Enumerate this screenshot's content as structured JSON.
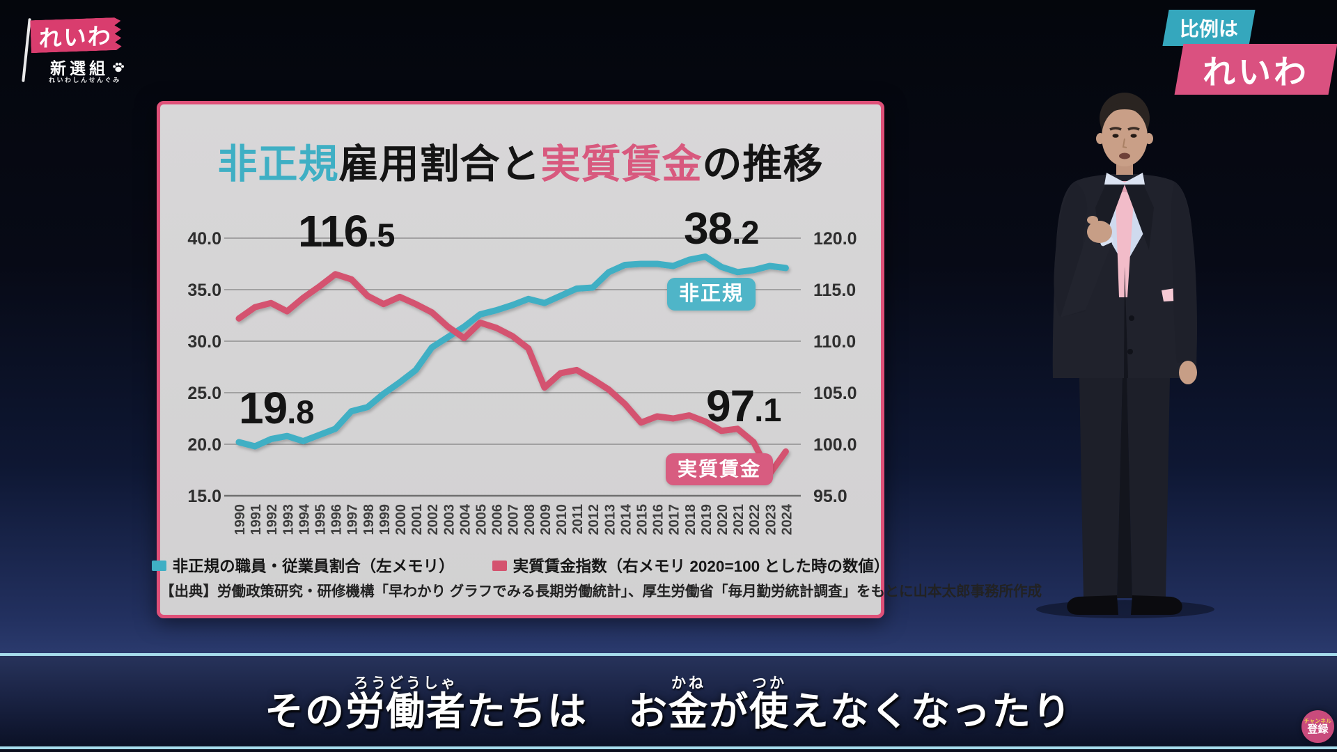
{
  "colors": {
    "brand_pink": "#d93d6e",
    "brand_teal": "#35a7bd",
    "panel_border_pink": "#df5078",
    "line_teal": "#3fafc4",
    "line_pink": "#d4536f"
  },
  "logo": {
    "flag_text": "れいわ",
    "sub_text": "新選組",
    "furigana": "れいわしんせんぐみ"
  },
  "corner_badge": {
    "top": "比例は",
    "bottom": "れいわ"
  },
  "chart_panel": {
    "title_parts": [
      {
        "text": "非正規",
        "color": "#3fafc4"
      },
      {
        "text": "雇用割合と",
        "color": "#141414"
      },
      {
        "text": "実質賃金",
        "color": "#d8597e"
      },
      {
        "text": "の推移",
        "color": "#141414"
      }
    ],
    "callouts": {
      "nonregular_start": {
        "int": "19",
        "dec": ".8"
      },
      "wage_peak": {
        "int": "116",
        "dec": ".5"
      },
      "nonregular_peak": {
        "int": "38",
        "dec": ".2"
      },
      "wage_end": {
        "int": "97",
        "dec": ".1"
      }
    },
    "series_badges": [
      {
        "text": "非正規",
        "color": "#4fb5c8"
      },
      {
        "text": "実質賃金",
        "color": "#d85c80"
      }
    ],
    "source": "【出典】労働政策研究・研修機構「早わかり グラフでみる長期労働統計」、厚生労働省「毎月勤労統計調査」をもとに山本太郎事務所作成"
  },
  "chart_data": {
    "type": "line",
    "title": "非正規雇用割合と実質賃金の推移",
    "x": [
      1990,
      1991,
      1992,
      1993,
      1994,
      1995,
      1996,
      1997,
      1998,
      1999,
      2000,
      2001,
      2002,
      2003,
      2004,
      2005,
      2006,
      2007,
      2008,
      2009,
      2010,
      2011,
      2012,
      2013,
      2014,
      2015,
      2016,
      2017,
      2018,
      2019,
      2020,
      2021,
      2022,
      2023,
      2024
    ],
    "series": [
      {
        "name": "非正規の職員・従業員割合（左メモリ）",
        "axis": "left",
        "color": "#3fafc4",
        "values": [
          20.2,
          19.8,
          20.5,
          20.8,
          20.3,
          20.9,
          21.5,
          23.2,
          23.6,
          24.9,
          26.0,
          27.2,
          29.4,
          30.4,
          31.4,
          32.6,
          33.0,
          33.5,
          34.1,
          33.7,
          34.4,
          35.1,
          35.2,
          36.7,
          37.4,
          37.5,
          37.5,
          37.3,
          37.9,
          38.2,
          37.2,
          36.7,
          36.9,
          37.3,
          37.1
        ]
      },
      {
        "name": "実質賃金指数（右メモリ 2020=100 とした時の数値）",
        "axis": "right",
        "color": "#d4536f",
        "values": [
          112.2,
          113.3,
          113.7,
          112.9,
          114.2,
          115.3,
          116.5,
          116.0,
          114.4,
          113.6,
          114.3,
          113.6,
          112.8,
          111.4,
          110.3,
          111.8,
          111.3,
          110.5,
          109.3,
          105.5,
          106.9,
          107.2,
          106.3,
          105.3,
          103.9,
          102.1,
          102.7,
          102.5,
          102.8,
          102.2,
          101.3,
          101.5,
          100.2,
          97.1,
          99.3
        ]
      }
    ],
    "left_axis": {
      "ticks": [
        40.0,
        35.0,
        30.0,
        25.0,
        20.0,
        15.0
      ],
      "range": [
        15,
        40
      ]
    },
    "right_axis": {
      "ticks": [
        120.0,
        115.0,
        110.0,
        105.0,
        100.0,
        95.0
      ],
      "range": [
        95,
        120
      ]
    },
    "grid": true,
    "legend_position": "bottom",
    "annotations": [
      {
        "label": "19.8",
        "series": "非正規",
        "x": 1991
      },
      {
        "label": "116.5",
        "series": "実質賃金",
        "x": 1996
      },
      {
        "label": "38.2",
        "series": "非正規",
        "x": 2019
      },
      {
        "label": "97.1",
        "series": "実質賃金",
        "x": 2023
      }
    ]
  },
  "subtitle": {
    "segments": [
      {
        "text": "その"
      },
      {
        "text": "労働者",
        "ruby": "ろうどうしゃ"
      },
      {
        "text": "たちは"
      },
      {
        "text": "　お"
      },
      {
        "text": "金",
        "ruby": "かね"
      },
      {
        "text": "が"
      },
      {
        "text": "使",
        "ruby": "つか"
      },
      {
        "text": "えなくなったり"
      }
    ]
  },
  "subscribe_badge": {
    "line1": "チャンネル",
    "line2": "登録"
  }
}
